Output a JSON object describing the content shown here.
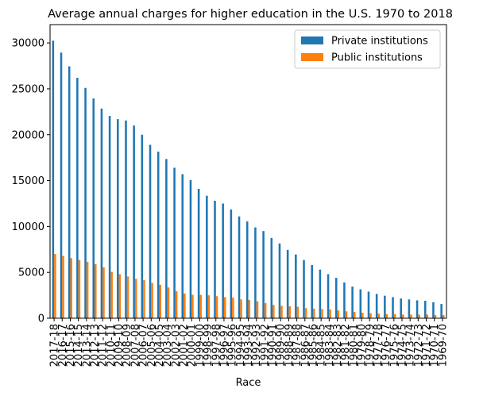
{
  "chart_data": {
    "type": "bar",
    "title": "Average annual charges for higher education in the U.S. 1970 to 2018",
    "xlabel": "Race",
    "ylabel": "",
    "ylim": [
      0,
      32000
    ],
    "yticks": [
      0,
      5000,
      10000,
      15000,
      20000,
      25000,
      30000
    ],
    "grid": false,
    "legend_position": "top-right",
    "categories": [
      "2017-18",
      "2016-17",
      "2015-16",
      "2014-15",
      "2013-14",
      "2012-13",
      "2011-12",
      "2010-11",
      "2009-10",
      "2008-09",
      "2007-08",
      "2006-07",
      "2005-06",
      "2004-05",
      "2003-04",
      "2002-03",
      "2001-02",
      "2000-01",
      "1999-00",
      "1998-99",
      "1997-98",
      "1996-97",
      "1995-96",
      "1994-95",
      "1993-94",
      "1992-93",
      "1991-92",
      "1990-91",
      "1989-90",
      "1988-89",
      "1987-88",
      "1986-87",
      "1985-86",
      "1984-85",
      "1983-84",
      "1982-83",
      "1981-82",
      "1980-81",
      "1979-80",
      "1978-79",
      "1977-78",
      "1976-77",
      "1975-76",
      "1974-75",
      "1973-74",
      "1972-73",
      "1971-72",
      "1970-71",
      "1969-70"
    ],
    "series": [
      {
        "name": "Private institutions",
        "color": "#1f77b4",
        "values": [
          30250,
          28950,
          27450,
          26200,
          25100,
          23950,
          22850,
          22050,
          21700,
          21550,
          21000,
          20000,
          18900,
          18150,
          17350,
          16400,
          15700,
          15050,
          14100,
          13350,
          12800,
          12500,
          11850,
          11100,
          10550,
          9900,
          9500,
          8750,
          8150,
          7450,
          6950,
          6350,
          5800,
          5300,
          4800,
          4400,
          3900,
          3450,
          3150,
          2900,
          2650,
          2450,
          2300,
          2150,
          2050,
          1950,
          1900,
          1750,
          1550
        ]
      },
      {
        "name": "Public institutions",
        "color": "#ff7f0e",
        "values": [
          7000,
          6800,
          6550,
          6350,
          6150,
          5900,
          5550,
          5050,
          4800,
          4550,
          4300,
          4150,
          3850,
          3650,
          3350,
          2950,
          2700,
          2550,
          2550,
          2500,
          2400,
          2300,
          2250,
          2050,
          2000,
          1850,
          1650,
          1450,
          1350,
          1300,
          1250,
          1100,
          1050,
          1000,
          950,
          850,
          750,
          700,
          600,
          550,
          500,
          450,
          450,
          400,
          400,
          400,
          400,
          350,
          350
        ]
      }
    ]
  }
}
